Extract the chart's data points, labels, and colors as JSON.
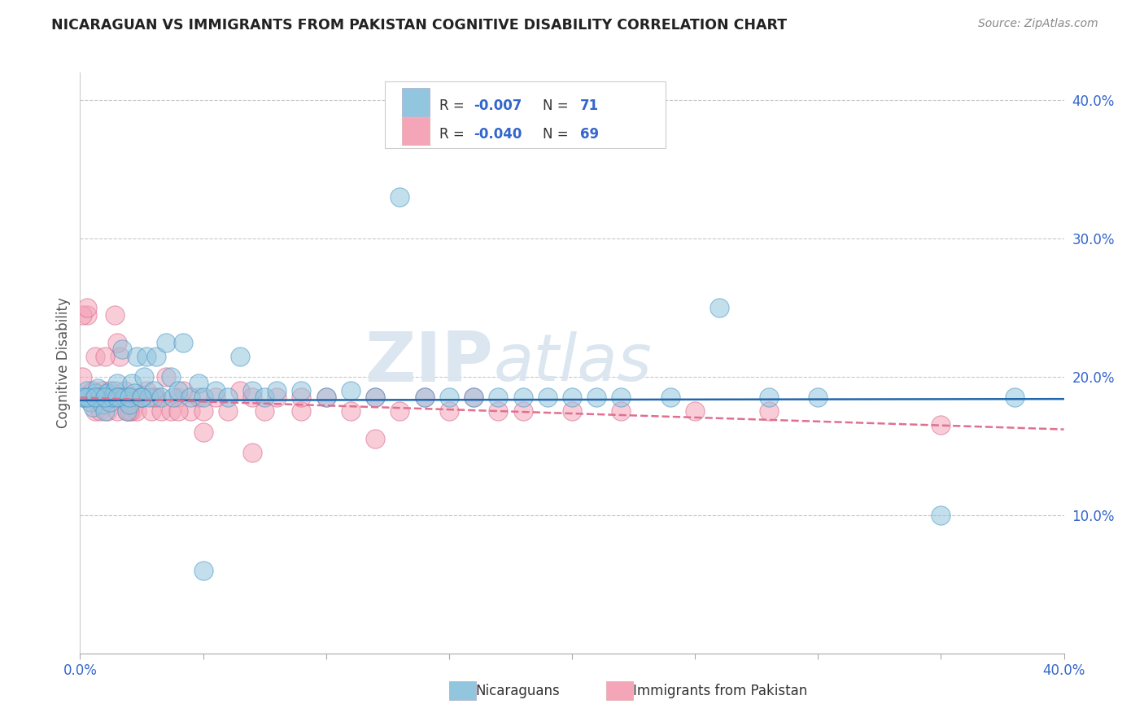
{
  "title": "NICARAGUAN VS IMMIGRANTS FROM PAKISTAN COGNITIVE DISABILITY CORRELATION CHART",
  "source": "Source: ZipAtlas.com",
  "ylabel": "Cognitive Disability",
  "right_yticks": [
    "40.0%",
    "30.0%",
    "20.0%",
    "10.0%"
  ],
  "right_ytick_vals": [
    0.4,
    0.3,
    0.2,
    0.1
  ],
  "xmin": 0.0,
  "xmax": 0.4,
  "ymin": 0.0,
  "ymax": 0.42,
  "legend_r1_val": "-0.007",
  "legend_n1_val": "71",
  "legend_r2_val": "-0.040",
  "legend_n2_val": "69",
  "legend_label1": "Nicaraguans",
  "legend_label2": "Immigrants from Pakistan",
  "color_blue": "#92c5de",
  "color_pink": "#f4a5b8",
  "edge_blue": "#4393c3",
  "edge_pink": "#d6608a",
  "line_blue": "#2166ac",
  "line_pink": "#e07090",
  "background_color": "#ffffff",
  "grid_color": "#c8c8c8",
  "blue_line_y0": 0.183,
  "blue_line_y1": 0.184,
  "pink_line_y0": 0.185,
  "pink_line_y1": 0.162,
  "blue_scatter_x": [
    0.002,
    0.003,
    0.004,
    0.005,
    0.006,
    0.007,
    0.008,
    0.009,
    0.01,
    0.011,
    0.012,
    0.013,
    0.014,
    0.015,
    0.016,
    0.017,
    0.018,
    0.019,
    0.02,
    0.021,
    0.022,
    0.023,
    0.025,
    0.026,
    0.027,
    0.028,
    0.03,
    0.031,
    0.033,
    0.035,
    0.037,
    0.038,
    0.04,
    0.042,
    0.045,
    0.048,
    0.05,
    0.055,
    0.06,
    0.065,
    0.07,
    0.075,
    0.08,
    0.09,
    0.1,
    0.11,
    0.12,
    0.13,
    0.14,
    0.15,
    0.16,
    0.17,
    0.18,
    0.19,
    0.2,
    0.21,
    0.22,
    0.24,
    0.26,
    0.28,
    0.3,
    0.35,
    0.38,
    0.001,
    0.003,
    0.006,
    0.01,
    0.015,
    0.02,
    0.025,
    0.05
  ],
  "blue_scatter_y": [
    0.185,
    0.19,
    0.182,
    0.178,
    0.188,
    0.192,
    0.185,
    0.18,
    0.175,
    0.188,
    0.182,
    0.185,
    0.19,
    0.195,
    0.185,
    0.22,
    0.185,
    0.175,
    0.18,
    0.195,
    0.188,
    0.215,
    0.185,
    0.2,
    0.215,
    0.185,
    0.19,
    0.215,
    0.185,
    0.225,
    0.2,
    0.185,
    0.19,
    0.225,
    0.185,
    0.195,
    0.185,
    0.19,
    0.185,
    0.215,
    0.19,
    0.185,
    0.19,
    0.19,
    0.185,
    0.19,
    0.185,
    0.33,
    0.185,
    0.185,
    0.185,
    0.185,
    0.185,
    0.185,
    0.185,
    0.185,
    0.185,
    0.185,
    0.25,
    0.185,
    0.185,
    0.1,
    0.185,
    0.185,
    0.185,
    0.185,
    0.185,
    0.185,
    0.185,
    0.185,
    0.06
  ],
  "pink_scatter_x": [
    0.001,
    0.002,
    0.003,
    0.004,
    0.005,
    0.006,
    0.007,
    0.008,
    0.009,
    0.01,
    0.011,
    0.012,
    0.013,
    0.014,
    0.015,
    0.016,
    0.017,
    0.018,
    0.019,
    0.02,
    0.021,
    0.022,
    0.023,
    0.025,
    0.027,
    0.029,
    0.031,
    0.033,
    0.035,
    0.037,
    0.04,
    0.042,
    0.045,
    0.048,
    0.05,
    0.055,
    0.06,
    0.065,
    0.07,
    0.075,
    0.08,
    0.09,
    0.1,
    0.11,
    0.12,
    0.13,
    0.14,
    0.15,
    0.16,
    0.17,
    0.18,
    0.2,
    0.22,
    0.25,
    0.28,
    0.35,
    0.001,
    0.003,
    0.006,
    0.01,
    0.015,
    0.02,
    0.025,
    0.03,
    0.04,
    0.05,
    0.07,
    0.09,
    0.12
  ],
  "pink_scatter_y": [
    0.2,
    0.185,
    0.245,
    0.185,
    0.19,
    0.175,
    0.185,
    0.175,
    0.19,
    0.185,
    0.175,
    0.19,
    0.185,
    0.245,
    0.175,
    0.215,
    0.185,
    0.19,
    0.175,
    0.185,
    0.175,
    0.185,
    0.175,
    0.185,
    0.19,
    0.175,
    0.185,
    0.175,
    0.2,
    0.175,
    0.185,
    0.19,
    0.175,
    0.185,
    0.175,
    0.185,
    0.175,
    0.19,
    0.185,
    0.175,
    0.185,
    0.175,
    0.185,
    0.175,
    0.185,
    0.175,
    0.185,
    0.175,
    0.185,
    0.175,
    0.175,
    0.175,
    0.175,
    0.175,
    0.175,
    0.165,
    0.245,
    0.25,
    0.215,
    0.215,
    0.225,
    0.175,
    0.185,
    0.185,
    0.175,
    0.16,
    0.145,
    0.185,
    0.155
  ]
}
